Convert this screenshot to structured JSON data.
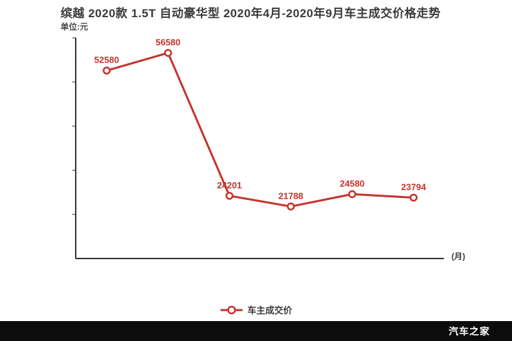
{
  "title": "缤越 2020款 1.5T 自动豪华型 2020年4月-2020年9月车主成交价格走势",
  "subtitle_unit": "单位:元",
  "axis": {
    "x_end_label": "(月)"
  },
  "legend": {
    "label": "车主成交价"
  },
  "watermark": "汽车之家",
  "colors": {
    "line": "#c5332d",
    "point_fill": "#ffffff",
    "label": "#c5332d",
    "axis": "#333333",
    "title": "#3a3a3a",
    "footer_bg": "#0c0c0c",
    "footer_text": "#ffffff"
  },
  "chart_data": {
    "type": "line",
    "title": "缤越 2020款 1.5T 自动豪华型 2020年4月-2020年9月车主成交价格走势",
    "unit": "元",
    "series": [
      {
        "name": "车主成交价",
        "values": [
          52580,
          56580,
          24201,
          21788,
          24580,
          23794
        ]
      }
    ],
    "x_tick_labels": [],
    "xlabel": "(月)",
    "ylabel": "单位:元",
    "ylim": [
      10000,
      60000
    ],
    "grid": false,
    "point_labels": true,
    "legend_position": "bottom"
  }
}
